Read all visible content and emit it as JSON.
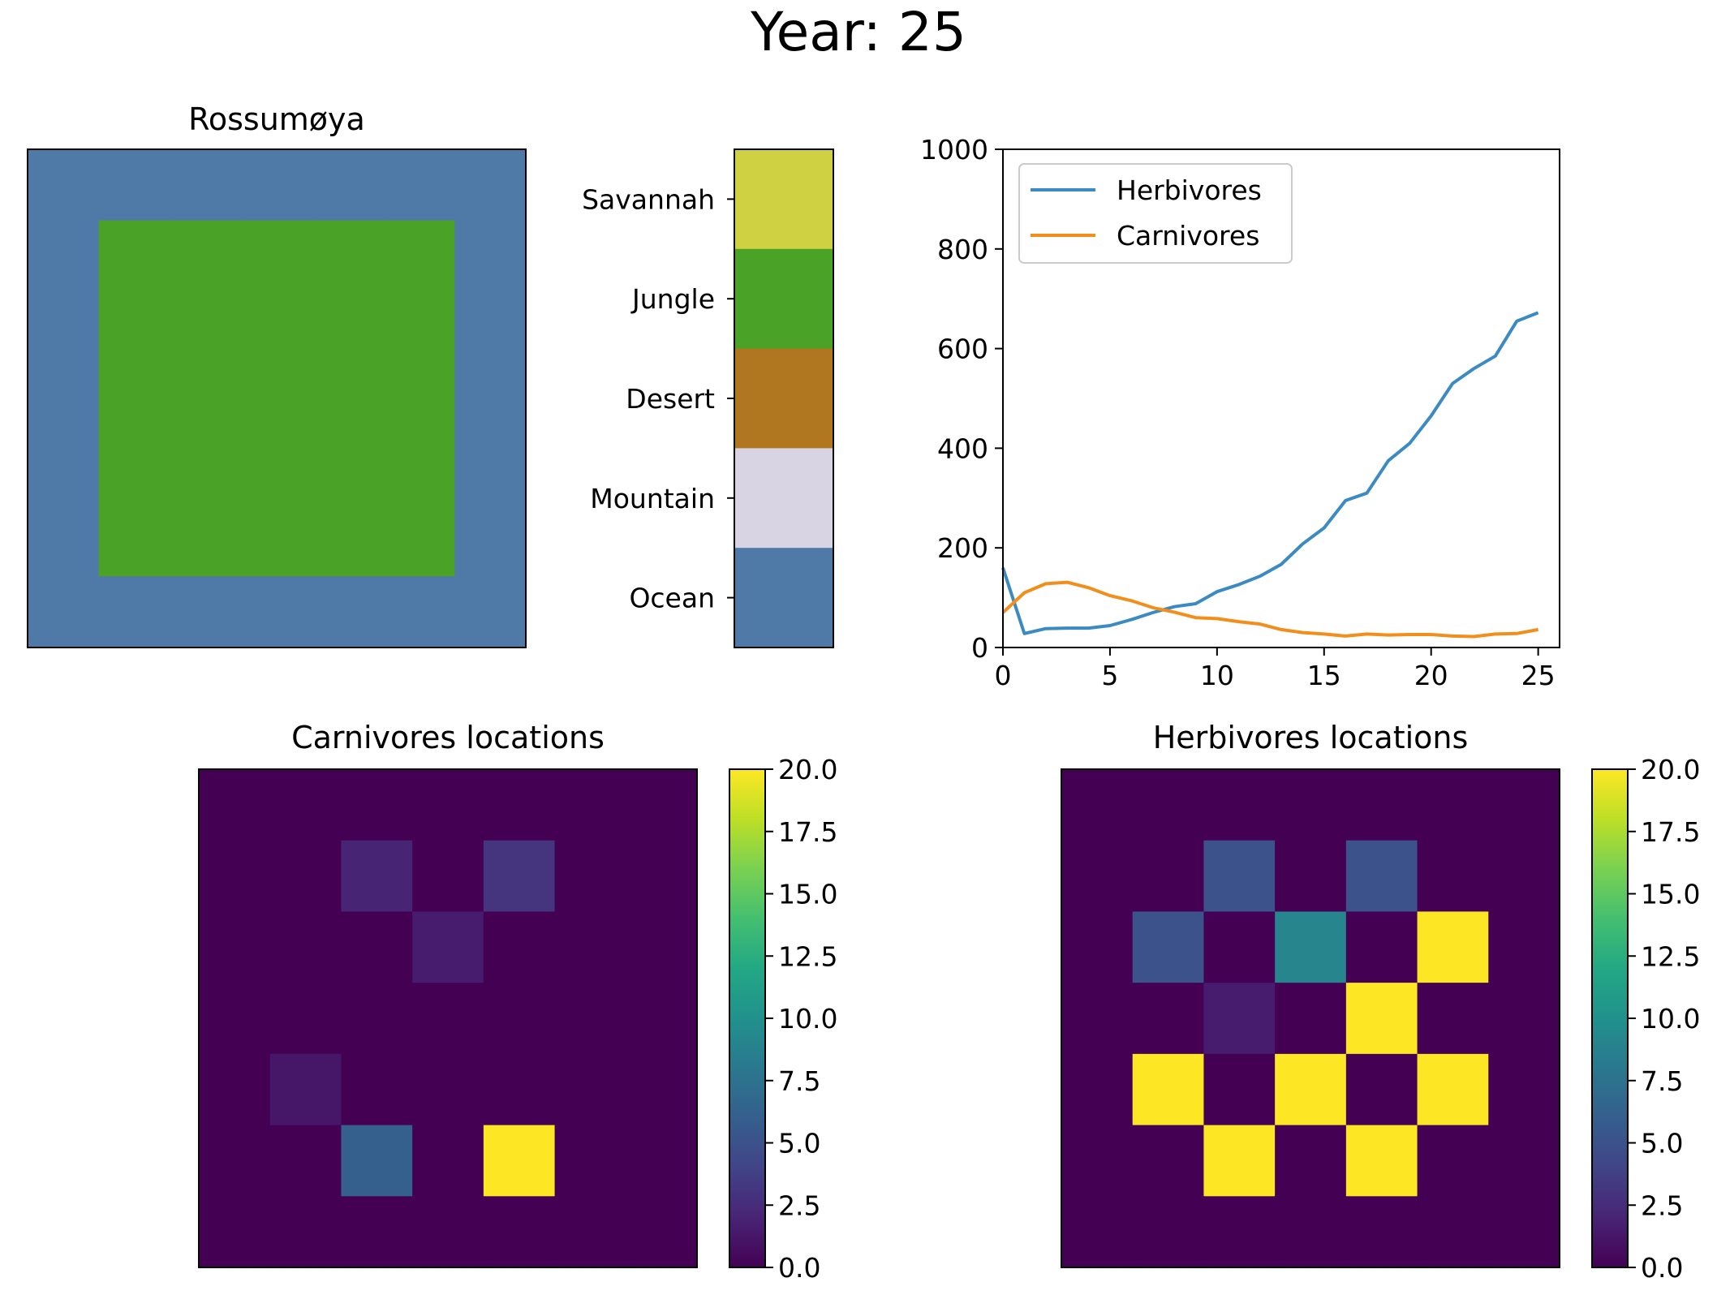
{
  "suptitle": "Year: 25",
  "chart_data": [
    {
      "type": "heatmap",
      "panel": "map",
      "title": "Rossumøya",
      "grid": [
        [
          "O",
          "O",
          "O",
          "O",
          "O",
          "O",
          "O"
        ],
        [
          "O",
          "J",
          "J",
          "J",
          "J",
          "J",
          "O"
        ],
        [
          "O",
          "J",
          "J",
          "J",
          "J",
          "J",
          "O"
        ],
        [
          "O",
          "J",
          "J",
          "J",
          "J",
          "J",
          "O"
        ],
        [
          "O",
          "J",
          "J",
          "J",
          "J",
          "J",
          "O"
        ],
        [
          "O",
          "J",
          "J",
          "J",
          "J",
          "J",
          "O"
        ],
        [
          "O",
          "O",
          "O",
          "O",
          "O",
          "O",
          "O"
        ]
      ],
      "colors": {
        "O": "#4f7aa8",
        "J": "#4aa226",
        "S": "#d0d142",
        "D": "#b17620",
        "M": "#d9d4e4"
      }
    },
    {
      "type": "legend-colorbar",
      "panel": "landscape-key",
      "entries": [
        {
          "code": "S",
          "label": "Savannah",
          "color": "#d0d142"
        },
        {
          "code": "J",
          "label": "Jungle",
          "color": "#4aa226"
        },
        {
          "code": "D",
          "label": "Desert",
          "color": "#b17620"
        },
        {
          "code": "M",
          "label": "Mountain",
          "color": "#d9d4e4"
        },
        {
          "code": "O",
          "label": "Ocean",
          "color": "#4f7aa8"
        }
      ]
    },
    {
      "type": "line",
      "panel": "population",
      "x": [
        0,
        1,
        2,
        3,
        4,
        5,
        6,
        7,
        8,
        9,
        10,
        11,
        12,
        13,
        14,
        15,
        16,
        17,
        18,
        19,
        20,
        21,
        22,
        23,
        24,
        25
      ],
      "series": [
        {
          "name": "Herbivores",
          "color": "#3b8bc2",
          "values": [
            160,
            28,
            38,
            39,
            39,
            44,
            56,
            70,
            82,
            88,
            112,
            126,
            143,
            167,
            208,
            240,
            295,
            310,
            375,
            410,
            465,
            530,
            560,
            585,
            655,
            672
          ]
        },
        {
          "name": "Carnivores",
          "color": "#f28e1c",
          "values": [
            70,
            110,
            128,
            131,
            120,
            104,
            94,
            80,
            71,
            60,
            58,
            52,
            47,
            36,
            30,
            27,
            23,
            27,
            25,
            26,
            26,
            23,
            22,
            27,
            28,
            36
          ]
        }
      ],
      "xlim": [
        0,
        26
      ],
      "ylim": [
        0,
        1000
      ],
      "xticks": [
        0,
        5,
        10,
        15,
        20,
        25
      ],
      "yticks": [
        0,
        200,
        400,
        600,
        800,
        1000
      ],
      "legend_position": "upper-left"
    },
    {
      "type": "heatmap",
      "panel": "carnivores",
      "title": "Carnivores locations",
      "vmin": 0,
      "vmax": 20,
      "cbar_ticks": [
        "0.0",
        "2.5",
        "5.0",
        "7.5",
        "10.0",
        "12.5",
        "15.0",
        "17.5",
        "20.0"
      ],
      "values": [
        [
          0,
          0,
          0,
          0,
          0,
          0,
          0
        ],
        [
          0,
          0,
          2,
          0,
          3,
          0,
          0
        ],
        [
          0,
          0,
          0,
          1.5,
          0,
          0,
          0
        ],
        [
          0,
          0,
          0,
          0,
          0,
          0,
          0
        ],
        [
          0,
          1.2,
          0,
          0,
          0,
          0,
          0
        ],
        [
          0,
          0,
          6,
          0,
          20,
          0,
          0
        ],
        [
          0,
          0,
          0,
          0,
          0,
          0,
          0
        ]
      ]
    },
    {
      "type": "heatmap",
      "panel": "herbivores",
      "title": "Herbivores locations",
      "vmin": 0,
      "vmax": 20,
      "cbar_ticks": [
        "0.0",
        "2.5",
        "5.0",
        "7.5",
        "10.0",
        "12.5",
        "15.0",
        "17.5",
        "20.0"
      ],
      "values": [
        [
          0,
          0,
          0,
          0,
          0,
          0,
          0
        ],
        [
          0,
          0,
          5,
          0,
          5,
          0,
          0
        ],
        [
          0,
          5,
          0,
          9,
          0,
          20,
          0
        ],
        [
          0,
          0,
          1.5,
          0,
          20,
          0,
          0
        ],
        [
          0,
          20,
          0,
          20,
          0,
          20,
          0
        ],
        [
          0,
          0,
          20,
          0,
          20,
          0,
          0
        ],
        [
          0,
          0,
          0,
          0,
          0,
          0,
          0
        ]
      ]
    }
  ]
}
